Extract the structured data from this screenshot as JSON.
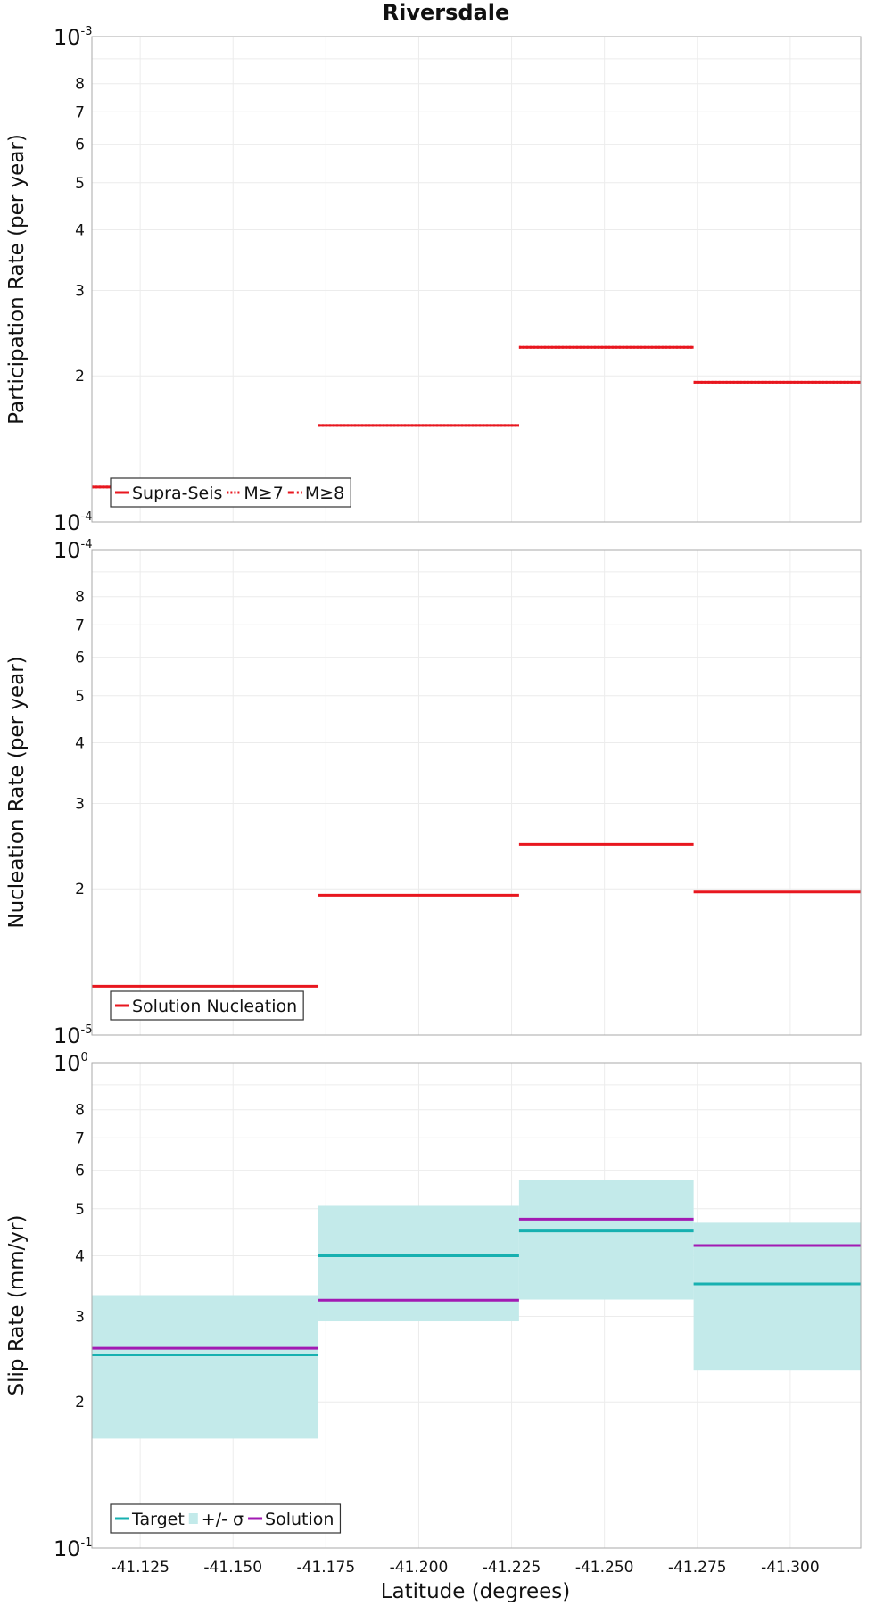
{
  "figure": {
    "title": "Riversdale",
    "xlabel": "Latitude (degrees)"
  },
  "chart_data": [
    {
      "type": "line",
      "ylabel": "Participation Rate (per year)",
      "yscale": "log",
      "ylim": [
        0.0001,
        0.001
      ],
      "decade_labels": {
        "bottom": {
          "base": "10",
          "exp": "-4"
        },
        "top": {
          "base": "10",
          "exp": "-3"
        }
      },
      "minor_tick_labels": [
        "2",
        "3",
        "4",
        "5",
        "6",
        "7",
        "8"
      ],
      "xlim": [
        -41.112,
        -41.319
      ],
      "xticks": [
        "-41.125",
        "-41.150",
        "-41.175",
        "-41.200",
        "-41.225",
        "-41.250",
        "-41.275",
        "-41.300"
      ],
      "grid": true,
      "legend": {
        "position": "bottom-left",
        "entries": [
          {
            "label": "Supra-Seis",
            "color": "#e8171f",
            "style": "solid"
          },
          {
            "label": "M≥7",
            "color": "#e8171f",
            "style": "dotted"
          },
          {
            "label": "M≥8",
            "color": "#e8171f",
            "style": "dashdot"
          }
        ]
      },
      "series": [
        {
          "name": "Supra-Seis",
          "color": "#e8171f",
          "style": "solid",
          "segments": [
            {
              "x": [
                -41.112,
                -41.173
              ],
              "y": 0.000118
            },
            {
              "x": [
                -41.173,
                -41.227
              ],
              "y": 0.000158
            },
            {
              "x": [
                -41.227,
                -41.274
              ],
              "y": 0.000229
            },
            {
              "x": [
                -41.274,
                -41.319
              ],
              "y": 0.000194
            }
          ]
        },
        {
          "name": "M≥7",
          "color": "#e8171f",
          "style": "dotted",
          "segments": [
            {
              "x": [
                -41.112,
                -41.173
              ],
              "y": 0.000118
            },
            {
              "x": [
                -41.173,
                -41.227
              ],
              "y": 0.000158
            },
            {
              "x": [
                -41.227,
                -41.274
              ],
              "y": 0.000229
            },
            {
              "x": [
                -41.274,
                -41.319
              ],
              "y": 0.000194
            }
          ]
        }
      ]
    },
    {
      "type": "line",
      "ylabel": "Nucleation Rate (per year)",
      "yscale": "log",
      "ylim": [
        1e-05,
        0.0001
      ],
      "decade_labels": {
        "bottom": {
          "base": "10",
          "exp": "-5"
        },
        "top": {
          "base": "10",
          "exp": "-4"
        }
      },
      "minor_tick_labels": [
        "2",
        "3",
        "4",
        "5",
        "6",
        "7",
        "8"
      ],
      "xlim": [
        -41.112,
        -41.319
      ],
      "xticks": [
        "-41.125",
        "-41.150",
        "-41.175",
        "-41.200",
        "-41.225",
        "-41.250",
        "-41.275",
        "-41.300"
      ],
      "grid": true,
      "legend": {
        "position": "bottom-left",
        "entries": [
          {
            "label": "Solution Nucleation",
            "color": "#e8171f",
            "style": "solid"
          }
        ]
      },
      "series": [
        {
          "name": "Solution Nucleation",
          "color": "#e8171f",
          "style": "solid",
          "segments": [
            {
              "x": [
                -41.112,
                -41.173
              ],
              "y": 1.26e-05
            },
            {
              "x": [
                -41.173,
                -41.227
              ],
              "y": 1.94e-05
            },
            {
              "x": [
                -41.227,
                -41.274
              ],
              "y": 2.47e-05
            },
            {
              "x": [
                -41.274,
                -41.319
              ],
              "y": 1.97e-05
            }
          ]
        }
      ]
    },
    {
      "type": "line",
      "ylabel": "Slip Rate (mm/yr)",
      "yscale": "log",
      "ylim": [
        0.1,
        1
      ],
      "decade_labels": {
        "bottom": {
          "base": "10",
          "exp": "-1"
        },
        "top": {
          "base": "10",
          "exp": "0"
        }
      },
      "minor_tick_labels": [
        "2",
        "3",
        "4",
        "5",
        "6",
        "7",
        "8"
      ],
      "xlim": [
        -41.112,
        -41.319
      ],
      "xticks": [
        "-41.125",
        "-41.150",
        "-41.175",
        "-41.200",
        "-41.225",
        "-41.250",
        "-41.275",
        "-41.300"
      ],
      "grid": true,
      "legend": {
        "position": "bottom-left",
        "entries": [
          {
            "label": "Target",
            "color": "#17b0b0",
            "style": "solid"
          },
          {
            "label": "+/- σ",
            "color": "#c3eaea",
            "style": "band"
          },
          {
            "label": "Solution",
            "color": "#a21ab3",
            "style": "solid"
          }
        ]
      },
      "bands": [
        {
          "name": "+/- σ",
          "color": "#c3eaea",
          "segments": [
            {
              "x": [
                -41.112,
                -41.173
              ],
              "y": [
                0.168,
                0.332
              ]
            },
            {
              "x": [
                -41.173,
                -41.227
              ],
              "y": [
                0.293,
                0.507
              ]
            },
            {
              "x": [
                -41.227,
                -41.274
              ],
              "y": [
                0.325,
                0.574
              ]
            },
            {
              "x": [
                -41.274,
                -41.319
              ],
              "y": [
                0.232,
                0.468
              ]
            }
          ]
        }
      ],
      "series": [
        {
          "name": "Target",
          "color": "#17b0b0",
          "style": "solid",
          "segments": [
            {
              "x": [
                -41.112,
                -41.173
              ],
              "y": 0.25
            },
            {
              "x": [
                -41.173,
                -41.227
              ],
              "y": 0.4
            },
            {
              "x": [
                -41.227,
                -41.274
              ],
              "y": 0.45
            },
            {
              "x": [
                -41.274,
                -41.319
              ],
              "y": 0.35
            }
          ]
        },
        {
          "name": "Solution",
          "color": "#a21ab3",
          "style": "solid",
          "segments": [
            {
              "x": [
                -41.112,
                -41.173
              ],
              "y": 0.258
            },
            {
              "x": [
                -41.173,
                -41.227
              ],
              "y": 0.324
            },
            {
              "x": [
                -41.227,
                -41.274
              ],
              "y": 0.476
            },
            {
              "x": [
                -41.274,
                -41.319
              ],
              "y": 0.42
            }
          ]
        }
      ]
    }
  ]
}
